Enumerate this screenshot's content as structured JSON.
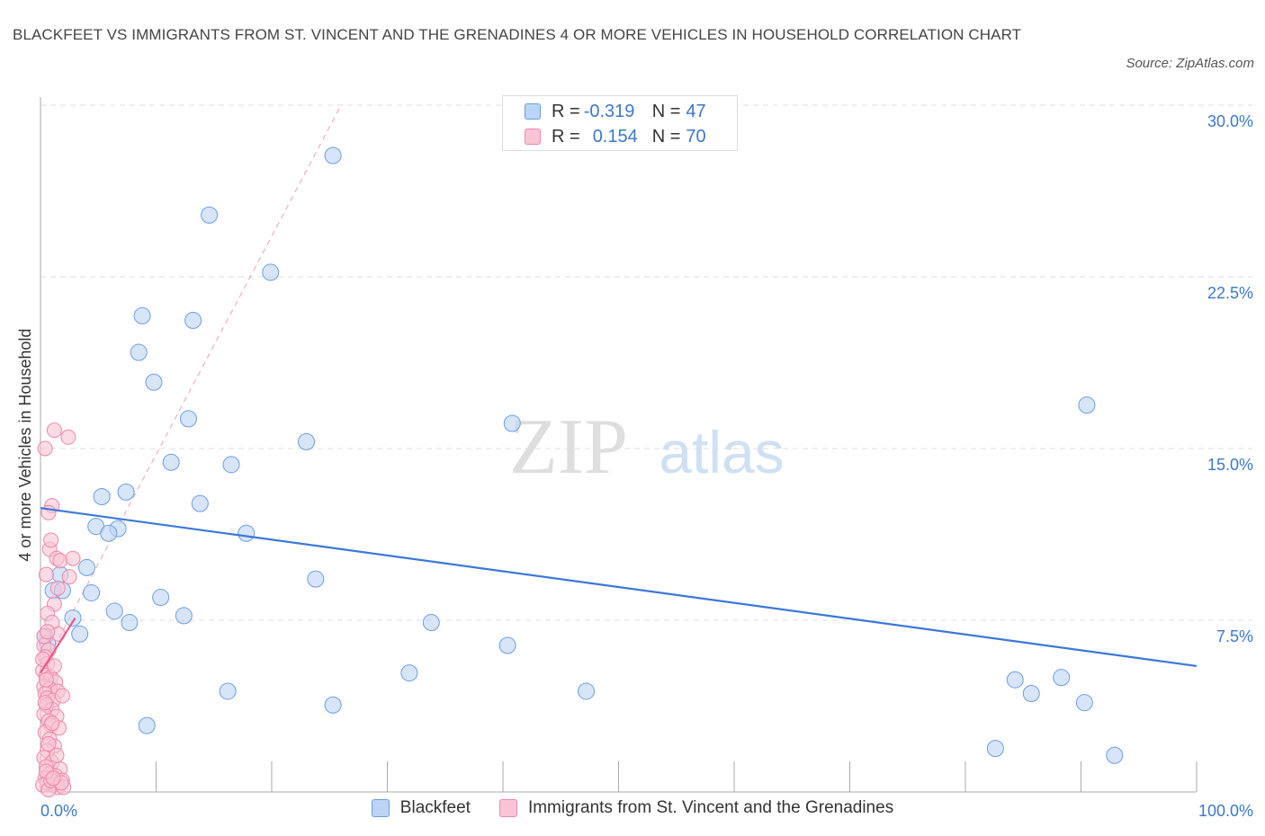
{
  "title": "BLACKFEET VS IMMIGRANTS FROM ST. VINCENT AND THE GRENADINES 4 OR MORE VEHICLES IN HOUSEHOLD CORRELATION CHART",
  "source": "Source: ZipAtlas.com",
  "watermark": {
    "zip": "ZIP",
    "atlas": "atlas"
  },
  "colors": {
    "blackfeet_fill": "#bcd4f5",
    "blackfeet_stroke": "#6a9fe0",
    "blackfeet_line": "#3b78d8",
    "immigrants_fill": "#f9c4d4",
    "immigrants_stroke": "#ee88a8",
    "immigrants_line": "#e85a8a",
    "tick_label": "#3b78c8",
    "grid": "#dddddd"
  },
  "legend": {
    "rows": [
      {
        "r_label": "R =",
        "r_value": "-0.319",
        "n_label": "N =",
        "n_value": "47"
      },
      {
        "r_label": "R =",
        "r_value": "0.154",
        "n_label": "N =",
        "n_value": "70"
      }
    ]
  },
  "bottom_legend": [
    "Blackfeet",
    "Immigrants from St. Vincent and the Grenadines"
  ],
  "chart_data": {
    "type": "scatter",
    "title": "BLACKFEET VS IMMIGRANTS FROM ST. VINCENT AND THE GRENADINES 4 OR MORE VEHICLES IN HOUSEHOLD CORRELATION CHART",
    "xlabel": "",
    "ylabel": "4 or more Vehicles in Household",
    "xlim": [
      0,
      100
    ],
    "ylim": [
      0,
      30
    ],
    "x_tick_labels": [
      "0.0%",
      "100.0%"
    ],
    "y_ticks": [
      7.5,
      15,
      22.5,
      30
    ],
    "y_tick_labels": [
      "7.5%",
      "15.0%",
      "22.5%",
      "30.0%"
    ],
    "grid": true,
    "legend_position": "top-center",
    "series": [
      {
        "name": "Blackfeet",
        "r": -0.319,
        "n": 47,
        "trend": {
          "x": [
            0,
            100
          ],
          "y": [
            12.4,
            5.5
          ]
        },
        "points": [
          [
            25.3,
            27.8
          ],
          [
            14.6,
            25.2
          ],
          [
            19.9,
            22.7
          ],
          [
            8.8,
            20.8
          ],
          [
            13.2,
            20.6
          ],
          [
            8.5,
            19.2
          ],
          [
            9.8,
            17.9
          ],
          [
            12.8,
            16.3
          ],
          [
            90.5,
            16.9
          ],
          [
            40.8,
            16.1
          ],
          [
            23.0,
            15.3
          ],
          [
            11.3,
            14.4
          ],
          [
            16.5,
            14.3
          ],
          [
            7.4,
            13.1
          ],
          [
            5.3,
            12.9
          ],
          [
            13.8,
            12.6
          ],
          [
            4.8,
            11.6
          ],
          [
            6.7,
            11.5
          ],
          [
            5.9,
            11.3
          ],
          [
            17.8,
            11.3
          ],
          [
            4.0,
            9.8
          ],
          [
            1.7,
            9.5
          ],
          [
            23.8,
            9.3
          ],
          [
            1.1,
            8.8
          ],
          [
            1.9,
            8.8
          ],
          [
            4.4,
            8.7
          ],
          [
            10.4,
            8.5
          ],
          [
            6.4,
            7.9
          ],
          [
            12.4,
            7.7
          ],
          [
            2.8,
            7.6
          ],
          [
            7.7,
            7.4
          ],
          [
            33.8,
            7.4
          ],
          [
            3.4,
            6.9
          ],
          [
            0.4,
            6.8
          ],
          [
            40.4,
            6.4
          ],
          [
            16.2,
            4.4
          ],
          [
            31.9,
            5.2
          ],
          [
            47.2,
            4.4
          ],
          [
            84.3,
            4.9
          ],
          [
            88.3,
            5.0
          ],
          [
            85.7,
            4.3
          ],
          [
            25.3,
            3.8
          ],
          [
            90.3,
            3.9
          ],
          [
            9.2,
            2.9
          ],
          [
            82.6,
            1.9
          ],
          [
            92.9,
            1.6
          ],
          [
            0.6,
            6.5
          ]
        ]
      },
      {
        "name": "Immigrants from St. Vincent and the Grenadines",
        "r": 0.154,
        "n": 70,
        "trend": {
          "x": [
            0,
            3
          ],
          "y": [
            5.2,
            7.6
          ]
        },
        "trend_extended": {
          "x": [
            0,
            26
          ],
          "y": [
            5.2,
            30.0
          ]
        },
        "points": [
          [
            1.2,
            15.8
          ],
          [
            2.4,
            15.5
          ],
          [
            0.4,
            15.0
          ],
          [
            1.0,
            12.5
          ],
          [
            0.7,
            12.2
          ],
          [
            0.8,
            10.6
          ],
          [
            0.9,
            11.0
          ],
          [
            1.4,
            10.2
          ],
          [
            1.7,
            10.1
          ],
          [
            2.8,
            10.2
          ],
          [
            0.5,
            9.5
          ],
          [
            2.5,
            9.4
          ],
          [
            1.5,
            8.9
          ],
          [
            1.2,
            8.2
          ],
          [
            0.6,
            7.8
          ],
          [
            1.0,
            7.4
          ],
          [
            1.5,
            6.9
          ],
          [
            0.3,
            6.4
          ],
          [
            0.7,
            6.2
          ],
          [
            0.4,
            5.9
          ],
          [
            0.6,
            5.6
          ],
          [
            0.2,
            5.3
          ],
          [
            0.5,
            5.1
          ],
          [
            0.9,
            5.0
          ],
          [
            1.3,
            4.8
          ],
          [
            0.3,
            4.6
          ],
          [
            0.8,
            4.5
          ],
          [
            1.5,
            4.4
          ],
          [
            0.4,
            4.3
          ],
          [
            0.6,
            4.1
          ],
          [
            1.1,
            4.0
          ],
          [
            1.9,
            4.2
          ],
          [
            0.5,
            3.8
          ],
          [
            1.0,
            3.6
          ],
          [
            0.3,
            3.4
          ],
          [
            1.4,
            3.3
          ],
          [
            0.7,
            3.1
          ],
          [
            0.9,
            2.9
          ],
          [
            1.6,
            2.8
          ],
          [
            0.4,
            2.6
          ],
          [
            0.8,
            2.3
          ],
          [
            1.2,
            2.0
          ],
          [
            0.6,
            1.8
          ],
          [
            0.3,
            1.5
          ],
          [
            1.0,
            1.3
          ],
          [
            0.5,
            1.1
          ],
          [
            1.7,
            1.0
          ],
          [
            0.8,
            0.8
          ],
          [
            1.3,
            0.7
          ],
          [
            0.4,
            0.6
          ],
          [
            1.9,
            0.5
          ],
          [
            0.6,
            0.4
          ],
          [
            1.1,
            0.3
          ],
          [
            0.2,
            0.3
          ],
          [
            1.5,
            0.2
          ],
          [
            2.0,
            0.2
          ],
          [
            0.7,
            0.1
          ],
          [
            0.9,
            0.5
          ],
          [
            0.3,
            6.8
          ],
          [
            0.6,
            7.0
          ],
          [
            0.2,
            5.8
          ],
          [
            1.2,
            5.5
          ],
          [
            0.5,
            4.9
          ],
          [
            0.4,
            3.9
          ],
          [
            1.0,
            3.0
          ],
          [
            0.7,
            2.1
          ],
          [
            1.4,
            1.6
          ],
          [
            0.5,
            0.9
          ],
          [
            1.8,
            0.4
          ],
          [
            1.1,
            0.6
          ]
        ]
      }
    ]
  }
}
